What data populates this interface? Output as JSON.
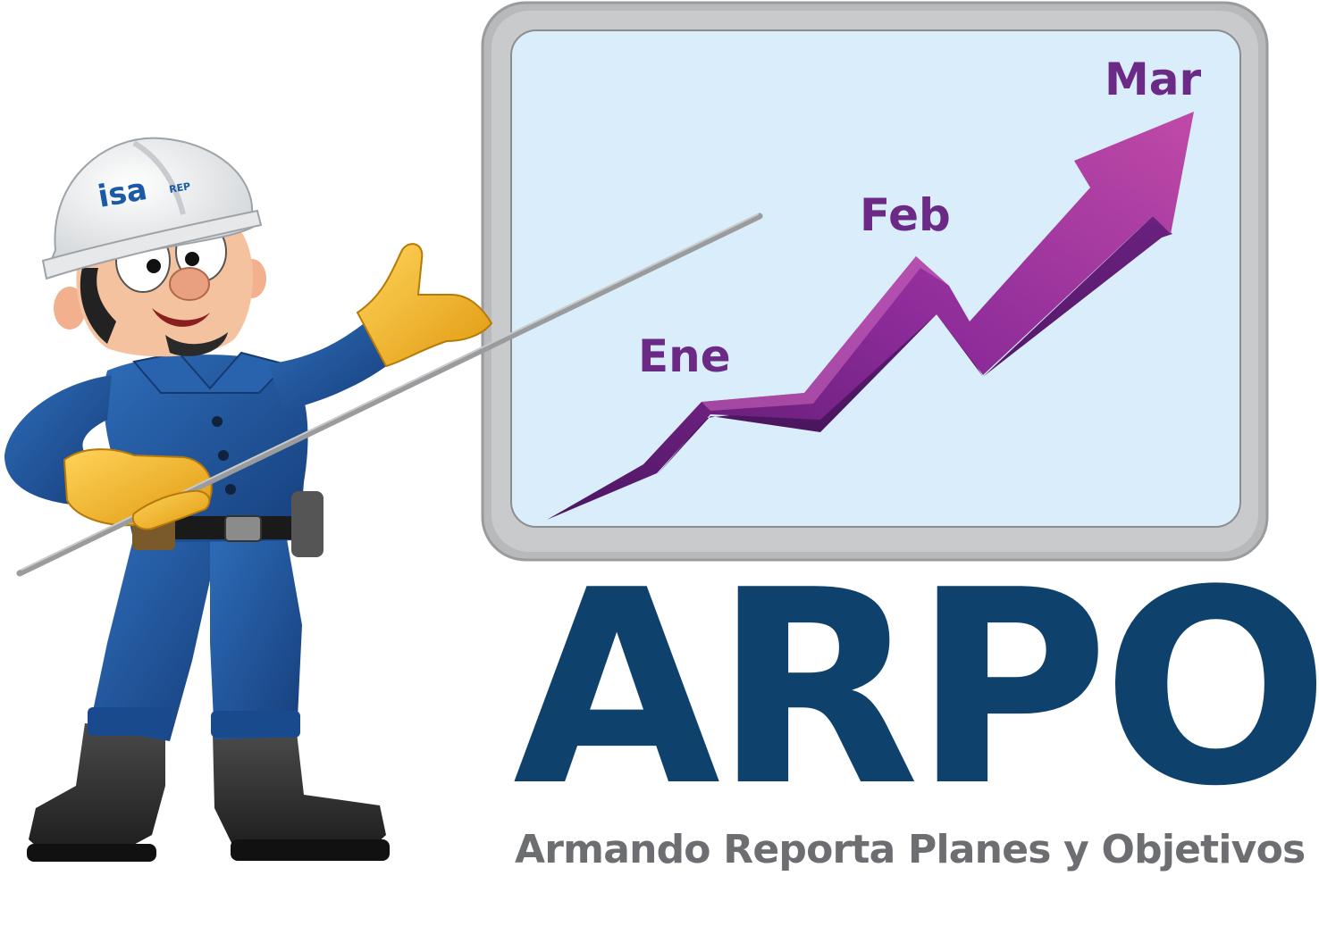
{
  "helmet": {
    "logo_text": "isa",
    "logo_sub": "REP"
  },
  "board": {
    "months": [
      "Ene",
      "Feb",
      "Mar"
    ],
    "month_color": "#6a2a86",
    "arrow_color": "#8e2a9a",
    "screen_color": "#d9eefa",
    "frame_color": "#b8b9bb"
  },
  "brand": {
    "title": "ARPO",
    "subtitle": "Armando Reporta Planes y Objetivos",
    "title_color": "#0e416b",
    "subtitle_color": "#6d6e71"
  },
  "character": {
    "suit_color": "#1f59a3",
    "glove_color": "#f2b21b",
    "boot_color": "#2a2a2a",
    "helmet_color": "#f4f4f4"
  }
}
